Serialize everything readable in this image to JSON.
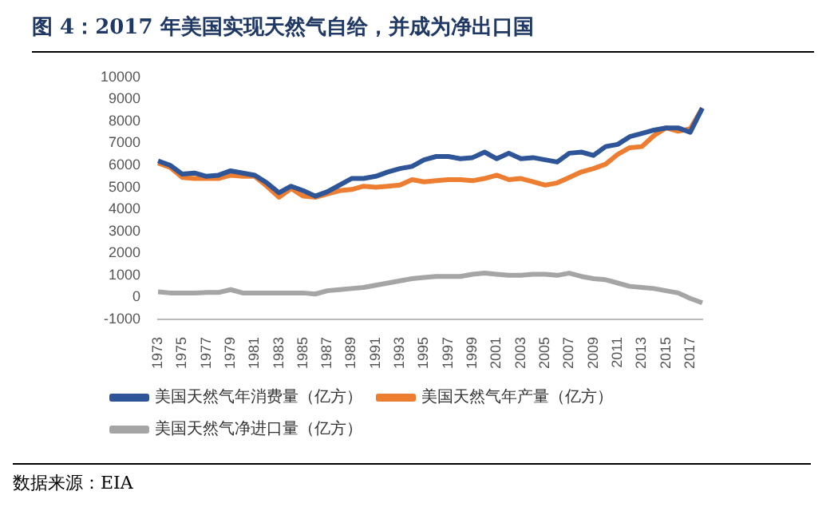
{
  "chart_data": {
    "type": "line",
    "title": "图 4：2017 年美国实现天然气自给，并成为净出口国",
    "categories": [
      "1973",
      null,
      "1975",
      null,
      "1977",
      null,
      "1979",
      null,
      "1981",
      null,
      "1983",
      null,
      "1985",
      null,
      "1987",
      null,
      "1989",
      null,
      "1991",
      null,
      "1993",
      null,
      "1995",
      null,
      "1997",
      null,
      "1999",
      null,
      "2001",
      null,
      "2003",
      null,
      "2005",
      null,
      "2007",
      null,
      "2009",
      null,
      "2011",
      null,
      "2013",
      null,
      "2015",
      null,
      "2017",
      null
    ],
    "series": [
      {
        "name": "美国天然气年消费量（亿方）",
        "color": "#2e5597",
        "values": [
          6200,
          6000,
          5600,
          5650,
          5500,
          5550,
          5750,
          5650,
          5550,
          5200,
          4750,
          5050,
          4850,
          4600,
          4800,
          5100,
          5400,
          5400,
          5500,
          5700,
          5850,
          5950,
          6250,
          6400,
          6400,
          6300,
          6350,
          6600,
          6300,
          6550,
          6300,
          6350,
          6250,
          6150,
          6550,
          6600,
          6450,
          6850,
          6950,
          7300,
          7450,
          7600,
          7700,
          7700,
          7500,
          8600
        ]
      },
      {
        "name": "美国天然气年产量（亿方）",
        "color": "#ed7d31",
        "values": [
          6100,
          5900,
          5450,
          5400,
          5400,
          5400,
          5550,
          5500,
          5500,
          5050,
          4550,
          4950,
          4600,
          4550,
          4700,
          4850,
          4900,
          5050,
          5000,
          5050,
          5100,
          5350,
          5250,
          5300,
          5350,
          5350,
          5300,
          5400,
          5550,
          5350,
          5400,
          5250,
          5100,
          5200,
          5450,
          5700,
          5850,
          6050,
          6500,
          6800,
          6850,
          7350,
          7700,
          7550,
          7650,
          8600
        ]
      },
      {
        "name": "美国天然气净进口量（亿方）",
        "color": "#a5a5a5",
        "values": [
          250,
          200,
          200,
          200,
          220,
          220,
          350,
          200,
          200,
          200,
          200,
          200,
          200,
          150,
          300,
          350,
          400,
          450,
          550,
          650,
          750,
          850,
          900,
          950,
          950,
          950,
          1050,
          1100,
          1050,
          1000,
          1000,
          1050,
          1050,
          1000,
          1100,
          950,
          850,
          800,
          650,
          500,
          450,
          400,
          300,
          200,
          -50,
          -250
        ]
      }
    ],
    "ylim": [
      -1000,
      10000
    ],
    "yticks": [
      -1000,
      0,
      1000,
      2000,
      3000,
      4000,
      5000,
      6000,
      7000,
      8000,
      9000,
      10000
    ],
    "grid": false,
    "legend": "bottom",
    "marker": "none",
    "line_style": "solid",
    "annotations": [
      "数据来源：EIA"
    ]
  }
}
